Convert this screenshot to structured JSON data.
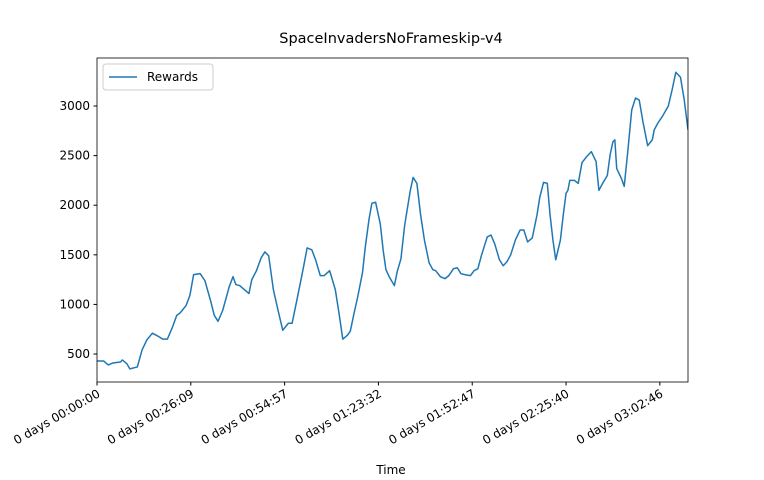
{
  "chart_data": {
    "type": "line",
    "title": "SpaceInvadersNoFrameskip-v4",
    "x_label": "Time",
    "legend": "upper left",
    "xlim": [
      0,
      63
    ],
    "ylim": [
      218,
      3484
    ],
    "xticks": [
      {
        "value": 0,
        "label": "0 days 00:00:00"
      },
      {
        "value": 10,
        "label": "0 days 00:26:09"
      },
      {
        "value": 20,
        "label": "0 days 00:54:57"
      },
      {
        "value": 30,
        "label": "0 days 01:23:32"
      },
      {
        "value": 40,
        "label": "0 days 01:52:47"
      },
      {
        "value": 50,
        "label": "0 days 02:25:40"
      },
      {
        "value": 60,
        "label": "0 days 03:02:46"
      }
    ],
    "yticks": [
      500,
      1000,
      1500,
      2000,
      2500,
      3000
    ],
    "x": [
      0,
      0.7,
      1.2,
      1.7,
      2.5,
      2.7,
      3.2,
      3.5,
      4.3,
      4.8,
      5.3,
      5.9,
      6.5,
      7.0,
      7.5,
      8.0,
      8.5,
      8.8,
      9.0,
      9.5,
      9.9,
      10.3,
      11.0,
      11.5,
      12.1,
      12.5,
      12.9,
      13.4,
      14.1,
      14.5,
      14.8,
      15.2,
      15.7,
      16.2,
      16.5,
      17.0,
      17.5,
      17.9,
      18.3,
      18.8,
      19.3,
      19.8,
      20.4,
      20.8,
      21.3,
      22.0,
      22.4,
      22.9,
      23.3,
      23.8,
      24.2,
      24.8,
      25.4,
      25.8,
      26.2,
      26.7,
      27.0,
      27.4,
      27.8,
      28.3,
      28.6,
      29.0,
      29.3,
      29.7,
      30.2,
      30.5,
      30.8,
      31.2,
      31.7,
      32.0,
      32.4,
      32.8,
      33.4,
      33.7,
      34.1,
      34.5,
      34.9,
      35.4,
      35.8,
      36.1,
      36.6,
      37.1,
      37.5,
      38.0,
      38.4,
      38.8,
      39.2,
      39.8,
      40.2,
      40.6,
      41.0,
      41.6,
      42.0,
      42.4,
      42.9,
      43.3,
      43.7,
      44.1,
      44.6,
      45.1,
      45.5,
      45.9,
      46.4,
      46.9,
      47.2,
      47.6,
      48.0,
      48.3,
      48.6,
      48.9,
      49.4,
      49.7,
      50.0,
      50.2,
      50.4,
      50.9,
      51.3,
      51.7,
      52.2,
      52.7,
      53.2,
      53.5,
      53.9,
      54.4,
      54.7,
      55.0,
      55.2,
      55.4,
      55.9,
      56.2,
      56.6,
      57.0,
      57.4,
      57.8,
      58.2,
      58.7,
      59.2,
      59.4,
      59.8,
      60.3,
      60.9,
      61.3,
      61.7,
      62.2,
      62.6,
      63.0
    ],
    "series": [
      {
        "name": "Rewards",
        "color": "#1f77b4",
        "values": [
          430,
          430,
          390,
          410,
          420,
          440,
          400,
          350,
          370,
          540,
          640,
          710,
          680,
          650,
          650,
          760,
          890,
          910,
          930,
          990,
          1090,
          1300,
          1310,
          1240,
          1040,
          890,
          830,
          940,
          1180,
          1280,
          1200,
          1190,
          1150,
          1110,
          1250,
          1340,
          1470,
          1530,
          1490,
          1150,
          940,
          740,
          810,
          810,
          1040,
          1370,
          1570,
          1550,
          1450,
          1290,
          1290,
          1340,
          1150,
          910,
          650,
          690,
          730,
          910,
          1080,
          1320,
          1580,
          1860,
          2020,
          2030,
          1810,
          1550,
          1350,
          1270,
          1190,
          1330,
          1460,
          1800,
          2150,
          2280,
          2220,
          1900,
          1650,
          1420,
          1350,
          1340,
          1280,
          1260,
          1290,
          1360,
          1370,
          1310,
          1300,
          1290,
          1340,
          1360,
          1500,
          1680,
          1700,
          1610,
          1450,
          1390,
          1430,
          1500,
          1650,
          1750,
          1750,
          1630,
          1670,
          1900,
          2080,
          2230,
          2220,
          1900,
          1650,
          1450,
          1650,
          1900,
          2120,
          2150,
          2250,
          2250,
          2220,
          2430,
          2490,
          2540,
          2440,
          2150,
          2220,
          2300,
          2510,
          2640,
          2660,
          2370,
          2270,
          2190,
          2560,
          2960,
          3080,
          3060,
          2840,
          2600,
          2660,
          2760,
          2830,
          2900,
          3000,
          3160,
          3340,
          3290,
          3060,
          2760
        ]
      }
    ]
  }
}
